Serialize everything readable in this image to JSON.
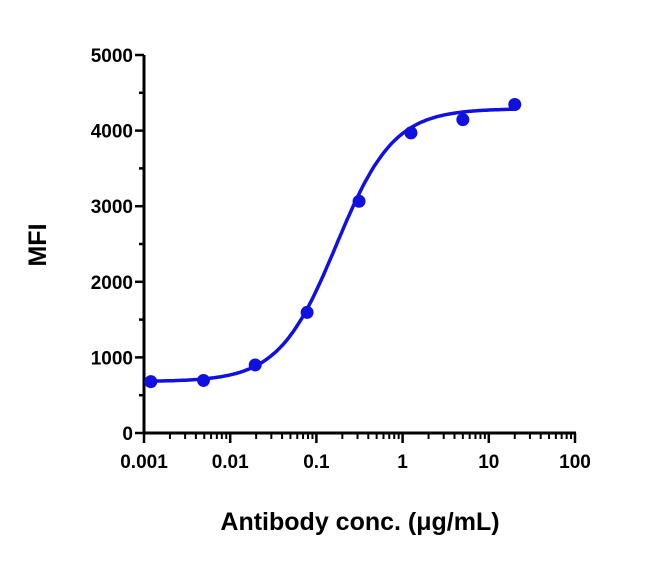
{
  "chart_data": {
    "type": "scatter",
    "title": "",
    "xlabel": "Antibody conc. (μg/mL)",
    "ylabel": "MFI",
    "xscale": "log",
    "xlim": [
      0.001,
      100
    ],
    "ylim": [
      0,
      5000
    ],
    "xticks": [
      "0.001",
      "0.01",
      "0.1",
      "1",
      "10",
      "100"
    ],
    "yticks": [
      "0",
      "1000",
      "2000",
      "3000",
      "4000",
      "5000"
    ],
    "grid": false,
    "legend": "none",
    "color": "#1010e0",
    "series": [
      {
        "x": [
          0.0012,
          0.0049,
          0.0195,
          0.078,
          0.3125,
          1.25,
          5,
          20
        ],
        "y": [
          680,
          695,
          900,
          1595,
          3065,
          3970,
          4145,
          4345
        ],
        "fit": {
          "model": "4PL",
          "bottom": 680,
          "top": 4290,
          "ec50": 0.17,
          "hill": 1.3
        }
      }
    ]
  }
}
